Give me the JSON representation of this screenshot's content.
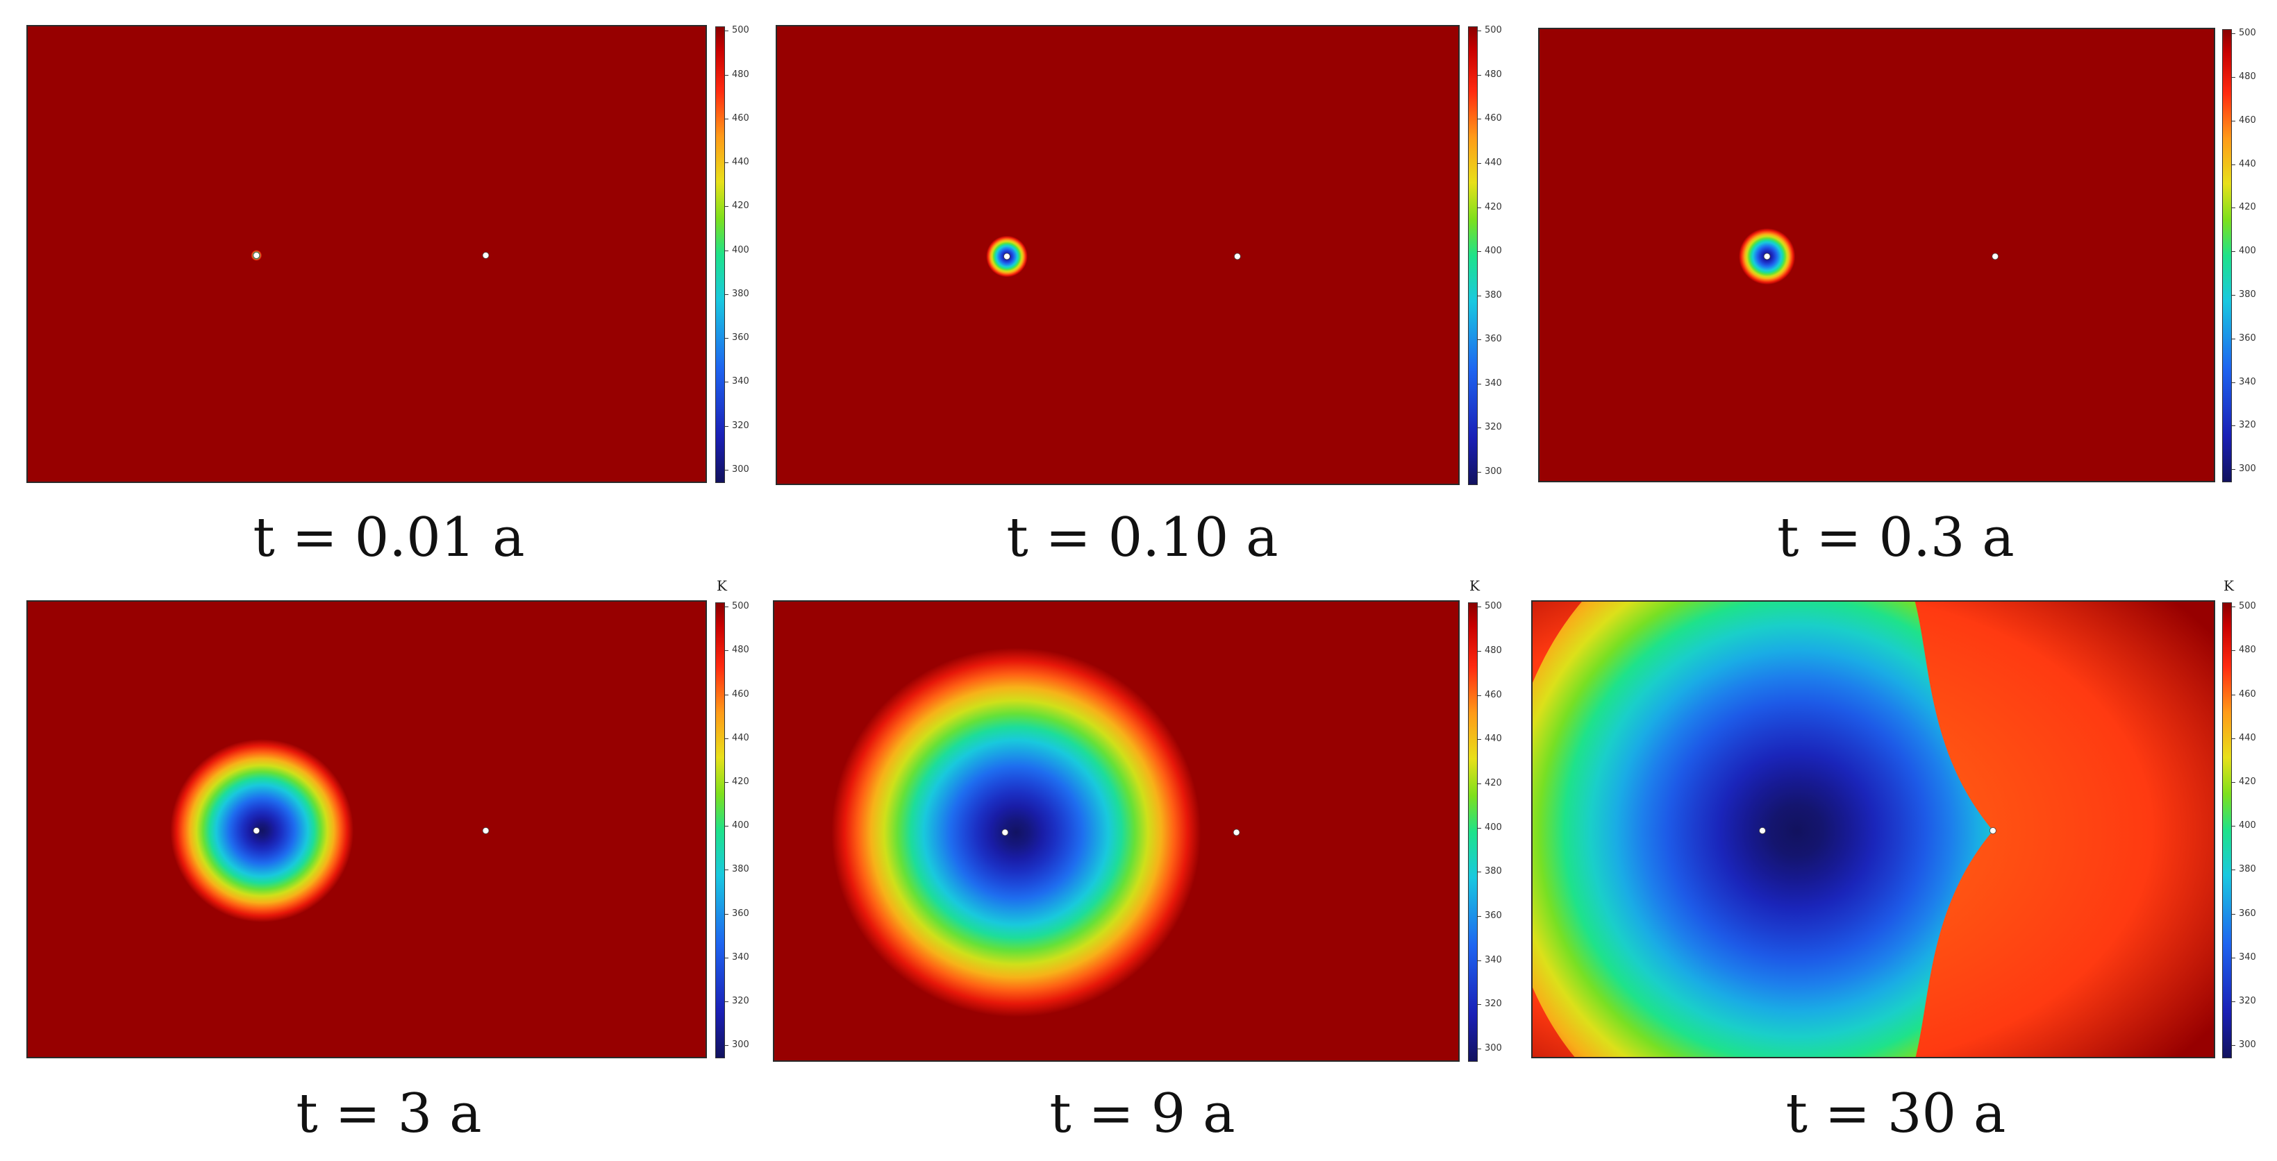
{
  "chart_data": [
    {
      "type": "heatmap",
      "title": "t = 0.01 a",
      "colorbar": {
        "ticks": [
          300,
          320,
          340,
          360,
          380,
          400,
          420,
          440,
          460,
          480,
          500
        ],
        "unit": ""
      },
      "colormap": "rainbow",
      "range": [
        294,
        502
      ],
      "background_value": 500,
      "cold_spot": {
        "min_value": 400,
        "radius": 0.012,
        "ring": true
      },
      "points": [
        {
          "x": 0.336,
          "y": 0.5
        },
        {
          "x": 0.673,
          "y": 0.5
        }
      ]
    },
    {
      "type": "heatmap",
      "title": "t = 0.10 a",
      "colorbar": {
        "ticks": [
          300,
          320,
          340,
          360,
          380,
          400,
          420,
          440,
          460,
          480,
          500
        ],
        "unit": ""
      },
      "colormap": "rainbow",
      "range": [
        294,
        502
      ],
      "background_value": 500,
      "cold_spot": {
        "min_value": 295,
        "radius": 0.045
      },
      "points": [
        {
          "x": 0.336,
          "y": 0.5
        },
        {
          "x": 0.673,
          "y": 0.5
        }
      ]
    },
    {
      "type": "heatmap",
      "title": "t = 0.3 a",
      "colorbar": {
        "ticks": [
          300,
          320,
          340,
          360,
          380,
          400,
          420,
          440,
          460,
          480,
          500
        ],
        "unit": ""
      },
      "colormap": "rainbow",
      "range": [
        294,
        502
      ],
      "background_value": 500,
      "cold_spot": {
        "min_value": 295,
        "radius": 0.062
      },
      "points": [
        {
          "x": 0.336,
          "y": 0.5
        },
        {
          "x": 0.673,
          "y": 0.5
        }
      ]
    },
    {
      "type": "heatmap",
      "title": "t = 3 a",
      "colorbar": {
        "ticks": [
          300,
          320,
          340,
          360,
          380,
          400,
          420,
          440,
          460,
          480,
          500
        ],
        "unit": "K"
      },
      "colormap": "rainbow",
      "range": [
        294,
        502
      ],
      "background_value": 500,
      "cold_spot": {
        "min_value": 295,
        "radius": 0.2
      },
      "points": [
        {
          "x": 0.336,
          "y": 0.5
        },
        {
          "x": 0.673,
          "y": 0.5
        }
      ]
    },
    {
      "type": "heatmap",
      "title": "t = 9 a",
      "colorbar": {
        "ticks": [
          300,
          320,
          340,
          360,
          380,
          400,
          420,
          440,
          460,
          480,
          500
        ],
        "unit": "K"
      },
      "colormap": "rainbow",
      "range": [
        294,
        502
      ],
      "background_value": 500,
      "cold_spot": {
        "min_value": 295,
        "radius": 0.4
      },
      "points": [
        {
          "x": 0.336,
          "y": 0.5
        },
        {
          "x": 0.673,
          "y": 0.5
        }
      ]
    },
    {
      "type": "heatmap",
      "title": "t = 30 a",
      "colorbar": {
        "ticks": [
          300,
          320,
          340,
          360,
          380,
          400,
          420,
          440,
          460,
          480,
          500
        ],
        "unit": "K"
      },
      "colormap": "rainbow",
      "range": [
        294,
        502
      ],
      "background_value": 480,
      "cold_spot": {
        "min_value": 292,
        "radius": 0.75,
        "teardrop": true
      },
      "points": [
        {
          "x": 0.336,
          "y": 0.5
        },
        {
          "x": 0.673,
          "y": 0.5
        }
      ]
    }
  ]
}
